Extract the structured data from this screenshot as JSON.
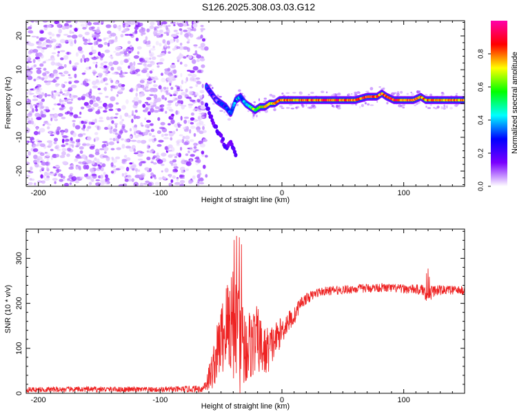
{
  "page": {
    "title": "S126.2025.308.03.03.G12"
  },
  "chart_data": [
    {
      "type": "heatmap",
      "title": "S126.2025.308.03.03.G12",
      "xlabel": "Height of straight line (km)",
      "ylabel": "Frequency (Hz)",
      "xlim": [
        -210,
        150
      ],
      "ylim": [
        -24.5,
        24.5
      ],
      "x_ticks": [
        -200,
        -100,
        0,
        100
      ],
      "y_ticks": [
        -20,
        -10,
        0,
        10,
        20
      ],
      "colorbar": {
        "label": "Normalized spectral amplitude",
        "range": [
          0,
          1
        ],
        "ticks": [
          "0.0",
          "0.2",
          "0.4",
          "0.6",
          "0.8"
        ],
        "colormap": [
          "#ffffff",
          "#7a00ff",
          "#0000ff",
          "#00ffff",
          "#00ff00",
          "#ffff00",
          "#ff0000",
          "#ff00aa"
        ]
      },
      "noise_region_x": [
        -210,
        -62
      ],
      "signal_track": {
        "x": [
          -62,
          -58,
          -54,
          -50,
          -46,
          -42,
          -38,
          -34,
          -30,
          -26,
          -22,
          -18,
          -14,
          -10,
          -6,
          -2,
          2,
          8,
          15,
          22,
          30,
          40,
          50,
          60,
          70,
          78,
          82,
          86,
          92,
          100,
          108,
          114,
          118,
          125,
          135,
          150
        ],
        "freq": [
          5,
          3,
          1,
          0,
          -1,
          -3,
          1,
          2,
          0,
          -1,
          -2,
          -1,
          -1,
          0,
          0,
          1,
          1,
          1,
          1,
          1,
          1,
          1,
          1,
          1,
          2,
          2,
          3,
          2,
          1,
          1,
          1,
          2,
          1,
          1,
          1,
          1
        ],
        "amplitude": [
          0.4,
          0.35,
          0.3,
          0.35,
          0.4,
          0.5,
          0.45,
          0.5,
          0.55,
          0.65,
          0.75,
          0.8,
          0.85,
          0.85,
          0.85,
          0.9,
          0.9,
          0.92,
          0.92,
          0.95,
          0.95,
          0.95,
          0.95,
          0.95,
          0.95,
          0.95,
          0.95,
          0.95,
          0.95,
          0.95,
          0.95,
          0.9,
          0.85,
          0.9,
          0.9,
          0.9
        ]
      },
      "branch": {
        "x": [
          -62,
          -58,
          -54,
          -50,
          -46,
          -42,
          -38
        ],
        "freq": [
          -1,
          -4,
          -7,
          -10,
          -13,
          -11,
          -15
        ]
      }
    },
    {
      "type": "line",
      "xlabel": "Height of straight line (km)",
      "ylabel": "SNR (10 * v/v)",
      "xlim": [
        -210,
        150
      ],
      "ylim": [
        0,
        365
      ],
      "x_ticks": [
        -200,
        -100,
        0,
        100
      ],
      "y_ticks": [
        0,
        100,
        200,
        300
      ],
      "color": "#ee2222",
      "envelope": {
        "x": [
          -210,
          -150,
          -100,
          -65,
          -58,
          -50,
          -45,
          -40,
          -35,
          -30,
          -25,
          -20,
          -15,
          -10,
          -5,
          0,
          5,
          10,
          15,
          20,
          30,
          40,
          60,
          80,
          100,
          115,
          120,
          125,
          135,
          150
        ],
        "mean": [
          8,
          9,
          8,
          10,
          45,
          120,
          150,
          170,
          120,
          100,
          110,
          120,
          90,
          100,
          120,
          140,
          160,
          170,
          200,
          210,
          225,
          228,
          232,
          235,
          232,
          230,
          220,
          228,
          230,
          228
        ],
        "spread": [
          6,
          6,
          6,
          8,
          40,
          80,
          110,
          140,
          130,
          90,
          80,
          75,
          60,
          50,
          40,
          30,
          25,
          20,
          15,
          12,
          10,
          10,
          10,
          10,
          10,
          12,
          20,
          12,
          10,
          10
        ]
      }
    }
  ]
}
